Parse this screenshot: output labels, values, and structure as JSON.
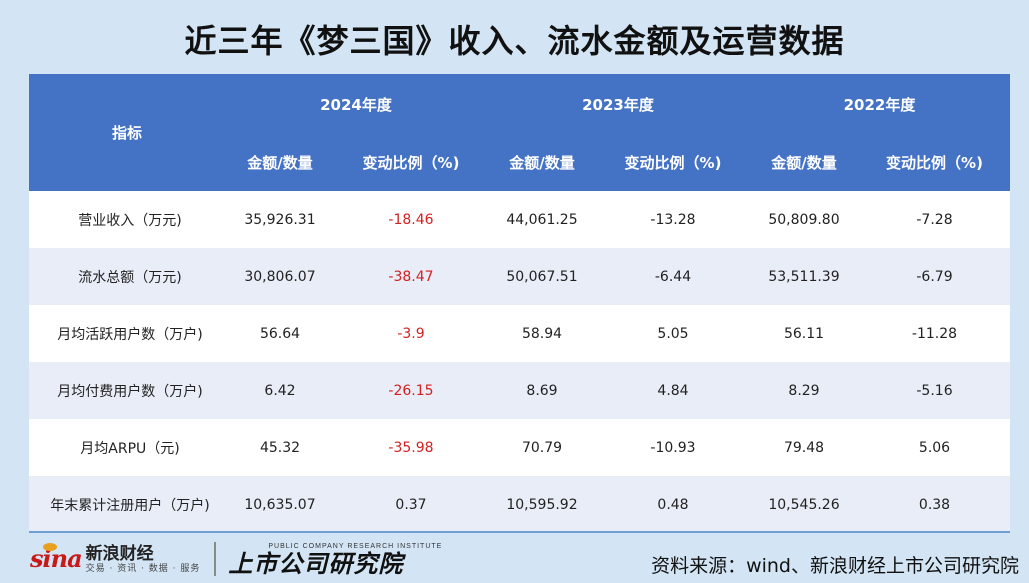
{
  "title": "近三年《梦三国》收入、流水金额及运营数据",
  "table": {
    "indicator_header": "指标",
    "years": [
      "2024年度",
      "2023年度",
      "2022年度"
    ],
    "sub_headers": [
      "金额/数量",
      "变动比例（%)"
    ],
    "rows": [
      {
        "label": "营业收入（万元)",
        "cells": [
          [
            "35,926.31",
            "-18.46"
          ],
          [
            "44,061.25",
            "-13.28"
          ],
          [
            "50,809.80",
            "-7.28"
          ]
        ]
      },
      {
        "label": "流水总额（万元)",
        "cells": [
          [
            "30,806.07",
            "-38.47"
          ],
          [
            "50,067.51",
            "-6.44"
          ],
          [
            "53,511.39",
            "-6.79"
          ]
        ]
      },
      {
        "label": "月均活跃用户数（万户)",
        "cells": [
          [
            "56.64",
            "-3.9"
          ],
          [
            "58.94",
            "5.05"
          ],
          [
            "56.11",
            "-11.28"
          ]
        ]
      },
      {
        "label": "月均付费用户数（万户)",
        "cells": [
          [
            "6.42",
            "-26.15"
          ],
          [
            "8.69",
            "4.84"
          ],
          [
            "8.29",
            "-5.16"
          ]
        ]
      },
      {
        "label": "月均ARPU（元)",
        "cells": [
          [
            "45.32",
            "-35.98"
          ],
          [
            "70.79",
            "-10.93"
          ],
          [
            "79.48",
            "5.06"
          ]
        ]
      },
      {
        "label": "年末累计注册用户（万户)",
        "cells": [
          [
            "10,635.07",
            "0.37"
          ],
          [
            "10,595.92",
            "0.48"
          ],
          [
            "10,545.26",
            "0.38"
          ]
        ]
      }
    ],
    "highlight_color": "#d42020",
    "header_color": "#4472c4"
  },
  "footer": {
    "sina_mark": "sina",
    "sina_name": "新浪财经",
    "sina_tagline": "交易 · 资讯 · 数据 · 服务",
    "institute_en": "PUBLIC COMPANY RESEARCH INSTITUTE",
    "institute_cn": "上市公司研究院",
    "source": "资料来源：wind、新浪财经上市公司研究院"
  }
}
